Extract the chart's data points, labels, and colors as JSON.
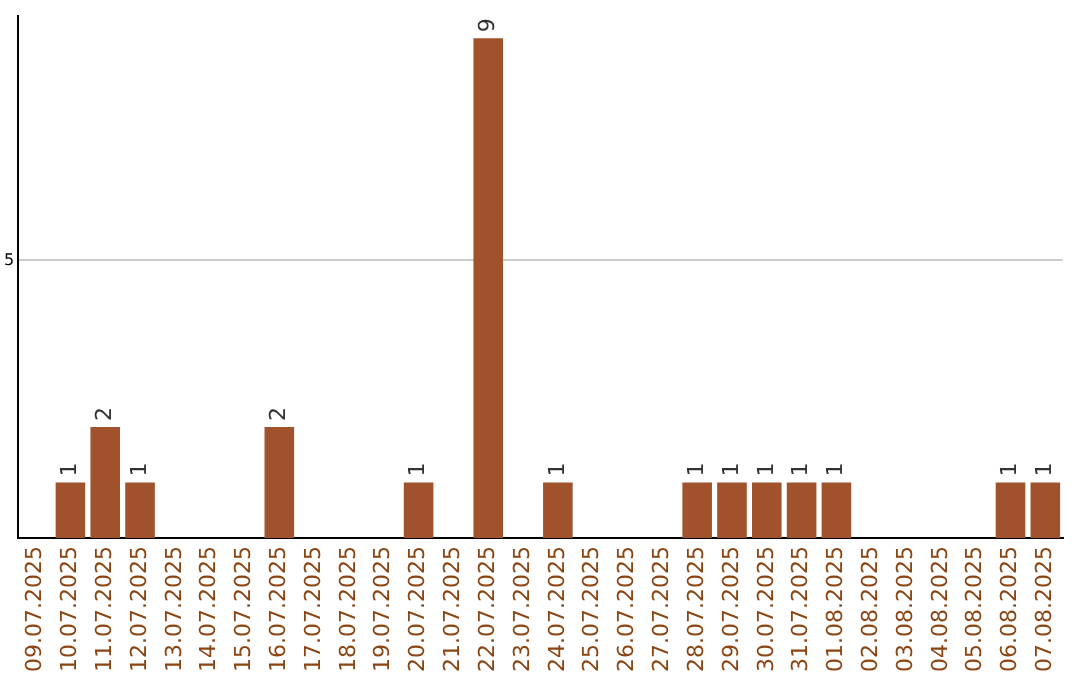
{
  "chart_data": {
    "type": "bar",
    "categories": [
      "09.07.2025",
      "10.07.2025",
      "11.07.2025",
      "12.07.2025",
      "13.07.2025",
      "14.07.2025",
      "15.07.2025",
      "16.07.2025",
      "17.07.2025",
      "18.07.2025",
      "19.07.2025",
      "20.07.2025",
      "21.07.2025",
      "22.07.2025",
      "23.07.2025",
      "24.07.2025",
      "25.07.2025",
      "26.07.2025",
      "27.07.2025",
      "28.07.2025",
      "29.07.2025",
      "30.07.2025",
      "31.07.2025",
      "01.08.2025",
      "02.08.2025",
      "03.08.2025",
      "04.08.2025",
      "05.08.2025",
      "06.08.2025",
      "07.08.2025"
    ],
    "values": [
      0,
      1,
      2,
      1,
      0,
      0,
      0,
      2,
      0,
      0,
      0,
      1,
      0,
      9,
      0,
      1,
      0,
      0,
      0,
      1,
      1,
      1,
      1,
      1,
      0,
      0,
      0,
      0,
      1,
      1
    ],
    "value_labels": [
      null,
      "1",
      "2",
      "1",
      null,
      null,
      null,
      "2",
      null,
      null,
      null,
      "1",
      null,
      "9",
      null,
      "1",
      null,
      null,
      null,
      "1",
      "1",
      "1",
      "1",
      "1",
      null,
      null,
      null,
      null,
      "1",
      "1"
    ],
    "color": "#a0522d",
    "ylim": [
      0,
      9.4
    ],
    "yticks": [
      5
    ],
    "grid": "y"
  }
}
